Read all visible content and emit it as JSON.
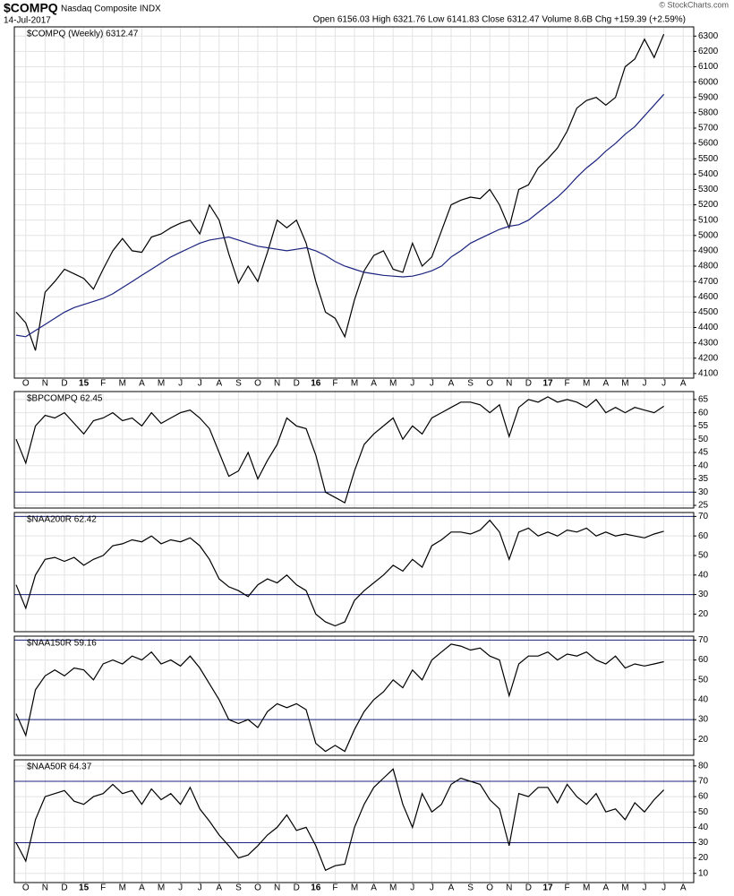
{
  "header": {
    "symbol": "$COMPQ",
    "name": "Nasdaq Composite INDX",
    "date": "14-Jul-2017",
    "quote": "Open 6156.03  High 6321.76  Low 6141.83  Close 6312.47  Volume 8.6B  Chg +159.39 (+2.59%)",
    "credit": "© StockCharts.com"
  },
  "chart_data": [
    {
      "type": "line",
      "grid": true,
      "categories": [
        null,
        "O",
        null,
        "N",
        null,
        "D",
        null,
        "15",
        null,
        "F",
        null,
        "M",
        null,
        "A",
        null,
        "M",
        null,
        "J",
        null,
        "J",
        null,
        "A",
        null,
        "S",
        null,
        "O",
        null,
        "N",
        null,
        "D",
        null,
        "16",
        null,
        "F",
        null,
        "M",
        null,
        "A",
        null,
        "M",
        null,
        "J",
        null,
        "J",
        null,
        "A",
        null,
        "S",
        null,
        "O",
        null,
        "N",
        null,
        "D",
        null,
        "17",
        null,
        "F",
        null,
        "M",
        null,
        "A",
        null,
        "M",
        null,
        "J",
        null,
        "J",
        null,
        "A"
      ],
      "series": [
        {
          "name": "$COMPQ (Weekly) 6312.47",
          "color": "#000000",
          "values": [
            4500,
            4430,
            4250,
            4630,
            4700,
            4780,
            4750,
            4720,
            4650,
            4780,
            4900,
            4980,
            4900,
            4890,
            4990,
            5010,
            5050,
            5080,
            5100,
            5010,
            5200,
            5100,
            4880,
            4690,
            4800,
            4700,
            4890,
            5100,
            5050,
            5100,
            4950,
            4700,
            4500,
            4460,
            4340,
            4580,
            4770,
            4870,
            4900,
            4780,
            4760,
            4950,
            4800,
            4860,
            5030,
            5200,
            5230,
            5250,
            5240,
            5300,
            5200,
            5050,
            5300,
            5330,
            5440,
            5500,
            5570,
            5680,
            5830,
            5880,
            5900,
            5850,
            5900,
            6100,
            6150,
            6280,
            6160,
            6312.47,
            null,
            null
          ]
        },
        {
          "color": "#1a237e",
          "values": [
            4350,
            4340,
            4380,
            4420,
            4460,
            4500,
            4530,
            4550,
            4570,
            4590,
            4620,
            4660,
            4700,
            4740,
            4780,
            4820,
            4860,
            4890,
            4920,
            4950,
            4970,
            4980,
            4990,
            4970,
            4950,
            4930,
            4920,
            4910,
            4900,
            4910,
            4920,
            4900,
            4870,
            4830,
            4800,
            4780,
            4760,
            4750,
            4740,
            4735,
            4730,
            4735,
            4750,
            4770,
            4800,
            4860,
            4900,
            4950,
            4980,
            5010,
            5040,
            5060,
            5070,
            5100,
            5150,
            5200,
            5250,
            5310,
            5380,
            5440,
            5490,
            5550,
            5600,
            5660,
            5710,
            5780,
            5850,
            5920,
            null,
            null
          ]
        }
      ],
      "ylim": [
        4070,
        6360
      ],
      "yticks": [
        4100,
        4200,
        4300,
        4400,
        4500,
        4600,
        4700,
        4800,
        4900,
        5000,
        5100,
        5200,
        5300,
        5400,
        5500,
        5600,
        5700,
        5800,
        5900,
        6000,
        6100,
        6200,
        6300
      ]
    },
    {
      "type": "line",
      "grid": true,
      "series": [
        {
          "name": "$BPCOMPQ 62.45",
          "color": "#000000",
          "values": [
            50,
            41,
            55,
            59,
            58,
            60,
            56,
            52,
            57,
            58,
            60,
            57,
            58,
            55,
            60,
            56,
            58,
            60,
            61,
            58,
            54,
            45,
            36,
            38,
            45,
            35,
            42,
            48,
            58,
            55,
            54,
            44,
            30,
            28,
            26,
            38,
            48,
            52,
            55,
            58,
            50,
            55,
            52,
            58,
            60,
            62,
            64,
            64,
            63,
            60,
            63,
            51,
            62,
            65,
            64,
            66,
            64,
            65,
            64,
            62,
            65,
            60,
            62,
            60,
            62,
            61,
            60,
            62.45,
            null,
            null
          ]
        }
      ],
      "ylim": [
        24,
        68
      ],
      "yticks": [
        25,
        30,
        35,
        40,
        45,
        50,
        55,
        60,
        65
      ],
      "reference_lines": [
        30
      ]
    },
    {
      "type": "line",
      "grid": true,
      "series": [
        {
          "name": "$NAA200R 62.42",
          "color": "#000000",
          "values": [
            35,
            23,
            40,
            48,
            49,
            47,
            49,
            45,
            48,
            50,
            55,
            56,
            58,
            57,
            60,
            56,
            58,
            57,
            59,
            55,
            48,
            38,
            34,
            32,
            29,
            35,
            38,
            36,
            40,
            35,
            32,
            20,
            16,
            14,
            16,
            27,
            32,
            36,
            40,
            45,
            42,
            48,
            44,
            55,
            58,
            62,
            62,
            61,
            63,
            68,
            62,
            48,
            62,
            64,
            60,
            62,
            60,
            63,
            62,
            64,
            60,
            62,
            60,
            61,
            60,
            59,
            61,
            62.42,
            null,
            null
          ]
        }
      ],
      "ylim": [
        11,
        72
      ],
      "yticks": [
        20,
        30,
        40,
        50,
        60,
        70
      ],
      "reference_lines": [
        30,
        70
      ]
    },
    {
      "type": "line",
      "grid": true,
      "series": [
        {
          "name": "$NAA150R 59.16",
          "color": "#000000",
          "values": [
            33,
            22,
            45,
            52,
            55,
            52,
            56,
            55,
            50,
            58,
            60,
            58,
            62,
            60,
            64,
            58,
            60,
            57,
            62,
            56,
            48,
            40,
            30,
            28,
            30,
            26,
            34,
            38,
            36,
            38,
            35,
            18,
            14,
            17,
            14,
            25,
            34,
            40,
            44,
            50,
            46,
            55,
            50,
            60,
            64,
            68,
            67,
            65,
            66,
            62,
            60,
            42,
            58,
            62,
            62,
            64,
            60,
            63,
            62,
            64,
            60,
            58,
            62,
            56,
            58,
            57,
            58,
            59.16,
            null,
            null
          ]
        }
      ],
      "ylim": [
        12,
        72
      ],
      "yticks": [
        20,
        30,
        40,
        50,
        60,
        70
      ],
      "reference_lines": [
        30,
        70
      ]
    },
    {
      "type": "line",
      "grid": true,
      "categories": [
        null,
        "O",
        null,
        "N",
        null,
        "D",
        null,
        "15",
        null,
        "F",
        null,
        "M",
        null,
        "A",
        null,
        "M",
        null,
        "J",
        null,
        "J",
        null,
        "A",
        null,
        "S",
        null,
        "O",
        null,
        "N",
        null,
        "D",
        null,
        "16",
        null,
        "F",
        null,
        "M",
        null,
        "A",
        null,
        "M",
        null,
        "J",
        null,
        "J",
        null,
        "A",
        null,
        "S",
        null,
        "O",
        null,
        "N",
        null,
        "D",
        null,
        "17",
        null,
        "F",
        null,
        "M",
        null,
        "A",
        null,
        "M",
        null,
        "J",
        null,
        "J",
        null,
        "A"
      ],
      "series": [
        {
          "name": "$NAA50R 64.37",
          "color": "#000000",
          "values": [
            30,
            18,
            45,
            60,
            62,
            64,
            57,
            55,
            60,
            62,
            68,
            62,
            64,
            55,
            65,
            58,
            62,
            55,
            66,
            52,
            44,
            35,
            28,
            20,
            22,
            28,
            35,
            40,
            48,
            38,
            40,
            28,
            12,
            15,
            16,
            40,
            55,
            66,
            72,
            78,
            55,
            40,
            62,
            50,
            55,
            68,
            72,
            70,
            68,
            58,
            52,
            28,
            62,
            60,
            66,
            66,
            56,
            68,
            60,
            55,
            62,
            50,
            52,
            45,
            56,
            50,
            58,
            64.37,
            null,
            null
          ]
        }
      ],
      "ylim": [
        4,
        84
      ],
      "yticks": [
        10,
        20,
        30,
        40,
        50,
        60,
        70,
        80
      ],
      "reference_lines": [
        30,
        70
      ]
    }
  ]
}
